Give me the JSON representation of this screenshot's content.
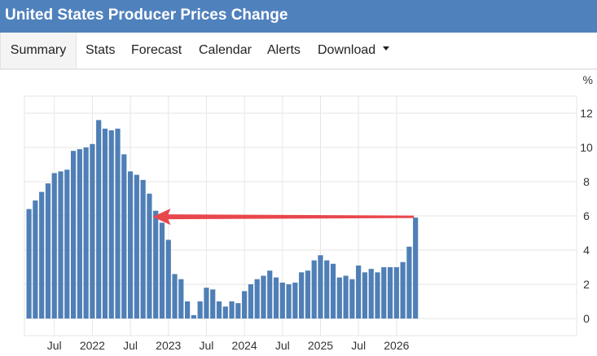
{
  "header": {
    "title": "United States Producer Prices Change"
  },
  "tabs": [
    {
      "label": "Summary",
      "active": true
    },
    {
      "label": "Stats"
    },
    {
      "label": "Forecast"
    },
    {
      "label": "Calendar"
    },
    {
      "label": "Alerts"
    },
    {
      "label": "Download",
      "has_caret": true
    }
  ],
  "colors": {
    "header_bg": "#4f81bd",
    "bar": "#4f7fb6",
    "arrow": "#e8474c",
    "grid": "#e6e6e6"
  },
  "chart_data": {
    "type": "bar",
    "unit": "%",
    "ylim": [
      -1.5,
      13.5
    ],
    "yticks": [
      0,
      2,
      4,
      6,
      8,
      10,
      12
    ],
    "grid": true,
    "x_start": "2021-03",
    "values": [
      6.4,
      6.9,
      7.4,
      7.9,
      8.5,
      8.6,
      8.7,
      9.8,
      9.9,
      10.0,
      10.2,
      11.6,
      11.1,
      11.0,
      11.1,
      9.6,
      8.6,
      8.4,
      8.1,
      7.3,
      6.3,
      5.6,
      4.6,
      2.6,
      2.3,
      1.0,
      0.2,
      1.0,
      1.8,
      1.7,
      1.0,
      0.7,
      1.0,
      0.9,
      1.6,
      2.0,
      2.3,
      2.5,
      2.8,
      2.4,
      2.1,
      2.0,
      2.1,
      2.7,
      2.8,
      3.4,
      3.7,
      3.4,
      3.2,
      2.4,
      2.5,
      2.3,
      3.1,
      2.7,
      2.9,
      2.7,
      3.0,
      3.0,
      3.0,
      3.3,
      4.2,
      5.9
    ],
    "x_tick_labels": [
      {
        "label": "Jul",
        "date": "2021-07"
      },
      {
        "label": "2022",
        "date": "2022-01"
      },
      {
        "label": "Jul",
        "date": "2022-07"
      },
      {
        "label": "2023",
        "date": "2023-01"
      },
      {
        "label": "Jul",
        "date": "2023-07"
      },
      {
        "label": "2024",
        "date": "2024-01"
      },
      {
        "label": "Jul",
        "date": "2024-07"
      },
      {
        "label": "2025",
        "date": "2025-01"
      },
      {
        "label": "Jul",
        "date": "2025-07"
      },
      {
        "label": "2026",
        "date": "2026-01"
      }
    ],
    "annotation": {
      "type": "arrow",
      "from_date": "2026-04",
      "to_date": "2022-10",
      "value": 5.9
    }
  }
}
